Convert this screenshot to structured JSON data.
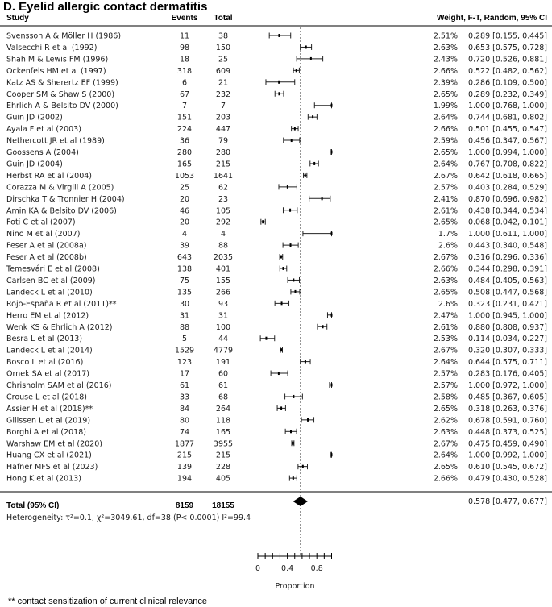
{
  "title": "D. Eyelid allergic contact dermatitis",
  "headers": {
    "study": "Study",
    "events": "Events",
    "total": "Total",
    "weight": "Weight, F-T, Random, 95% CI"
  },
  "chart_data": {
    "type": "forest",
    "xlabel": "Proportion",
    "xlim": [
      0,
      1
    ],
    "ticks": [
      "0",
      "0.4",
      "0.8"
    ],
    "tick_values": [
      0,
      0.1,
      0.2,
      0.3,
      0.4,
      0.5,
      0.6,
      0.7,
      0.8,
      0.9,
      1.0
    ],
    "tick_label_values": [
      0,
      0.4,
      0.8
    ],
    "reference_line": 0.578,
    "studies": [
      {
        "study": "Svensson A & Möller H (1986)",
        "events": "11",
        "total": "38",
        "weight": "2.51%",
        "ci_text": "0.289 [0.155, 0.445]",
        "est": 0.289,
        "lo": 0.155,
        "hi": 0.445
      },
      {
        "study": "Valsecchi R et al (1992)",
        "events": "98",
        "total": "150",
        "weight": "2.63%",
        "ci_text": "0.653 [0.575, 0.728]",
        "est": 0.653,
        "lo": 0.575,
        "hi": 0.728
      },
      {
        "study": "Shah M & Lewis FM (1996)",
        "events": "18",
        "total": "25",
        "weight": "2.43%",
        "ci_text": "0.720 [0.526, 0.881]",
        "est": 0.72,
        "lo": 0.526,
        "hi": 0.881
      },
      {
        "study": "Ockenfels HM et al (1997)",
        "events": "318",
        "total": "609",
        "weight": "2.66%",
        "ci_text": "0.522 [0.482, 0.562]",
        "est": 0.522,
        "lo": 0.482,
        "hi": 0.562
      },
      {
        "study": "Katz AS & Sherertz EF (1999)",
        "events": "6",
        "total": "21",
        "weight": "2.39%",
        "ci_text": "0.286 [0.109, 0.500]",
        "est": 0.286,
        "lo": 0.109,
        "hi": 0.5
      },
      {
        "study": "Cooper SM & Shaw S (2000)",
        "events": "67",
        "total": "232",
        "weight": "2.65%",
        "ci_text": "0.289 [0.232, 0.349]",
        "est": 0.289,
        "lo": 0.232,
        "hi": 0.349
      },
      {
        "study": "Ehrlich A & Belsito DV (2000)",
        "events": "7",
        "total": "7",
        "weight": "1.99%",
        "ci_text": "1.000 [0.768, 1.000]",
        "est": 1.0,
        "lo": 0.768,
        "hi": 1.0
      },
      {
        "study": "Guin JD (2002)",
        "events": "151",
        "total": "203",
        "weight": "2.64%",
        "ci_text": "0.744 [0.681, 0.802]",
        "est": 0.744,
        "lo": 0.681,
        "hi": 0.802
      },
      {
        "study": "Ayala F et al (2003)",
        "events": "224",
        "total": "447",
        "weight": "2.66%",
        "ci_text": "0.501 [0.455, 0.547]",
        "est": 0.501,
        "lo": 0.455,
        "hi": 0.547
      },
      {
        "study": "Nethercott JR et al (1989)",
        "events": "36",
        "total": "79",
        "weight": "2.59%",
        "ci_text": "0.456 [0.347, 0.567]",
        "est": 0.456,
        "lo": 0.347,
        "hi": 0.567
      },
      {
        "study": "Goossens A (2004)",
        "events": "280",
        "total": "280",
        "weight": "2.65%",
        "ci_text": "1.000 [0.994, 1.000]",
        "est": 1.0,
        "lo": 0.994,
        "hi": 1.0
      },
      {
        "study": "Guin JD (2004)",
        "events": "165",
        "total": "215",
        "weight": "2.64%",
        "ci_text": "0.767 [0.708, 0.822]",
        "est": 0.767,
        "lo": 0.708,
        "hi": 0.822
      },
      {
        "study": "Herbst RA et al (2004)",
        "events": "1053",
        "total": "1641",
        "weight": "2.67%",
        "ci_text": "0.642 [0.618, 0.665]",
        "est": 0.642,
        "lo": 0.618,
        "hi": 0.665
      },
      {
        "study": "Corazza M & Virgili A (2005)",
        "events": "25",
        "total": "62",
        "weight": "2.57%",
        "ci_text": "0.403 [0.284, 0.529]",
        "est": 0.403,
        "lo": 0.284,
        "hi": 0.529
      },
      {
        "study": "Dirschka T & Tronnier H (2004)",
        "events": "20",
        "total": "23",
        "weight": "2.41%",
        "ci_text": "0.870 [0.696, 0.982]",
        "est": 0.87,
        "lo": 0.696,
        "hi": 0.982
      },
      {
        "study": "Amin KA & Belsito DV (2006)",
        "events": "46",
        "total": "105",
        "weight": "2.61%",
        "ci_text": "0.438 [0.344, 0.534]",
        "est": 0.438,
        "lo": 0.344,
        "hi": 0.534
      },
      {
        "study": "Foti C et al (2007)",
        "events": "20",
        "total": "292",
        "weight": "2.65%",
        "ci_text": "0.068 [0.042, 0.101]",
        "est": 0.068,
        "lo": 0.042,
        "hi": 0.101
      },
      {
        "study": "Nino M et al (2007)",
        "events": "4",
        "total": "4",
        "weight": "1.7%",
        "ci_text": "1.000 [0.611, 1.000]",
        "est": 1.0,
        "lo": 0.611,
        "hi": 1.0
      },
      {
        "study": "Feser A et al (2008a)",
        "events": "39",
        "total": "88",
        "weight": "2.6%",
        "ci_text": "0.443 [0.340, 0.548]",
        "est": 0.443,
        "lo": 0.34,
        "hi": 0.548
      },
      {
        "study": "Feser A et al (2008b)",
        "events": "643",
        "total": "2035",
        "weight": "2.67%",
        "ci_text": "0.316 [0.296, 0.336]",
        "est": 0.316,
        "lo": 0.296,
        "hi": 0.336
      },
      {
        "study": "Temesvári E et al (2008)",
        "events": "138",
        "total": "401",
        "weight": "2.66%",
        "ci_text": "0.344 [0.298, 0.391]",
        "est": 0.344,
        "lo": 0.298,
        "hi": 0.391
      },
      {
        "study": "Carlsen BC et al (2009)",
        "events": "75",
        "total": "155",
        "weight": "2.63%",
        "ci_text": "0.484 [0.405, 0.563]",
        "est": 0.484,
        "lo": 0.405,
        "hi": 0.563
      },
      {
        "study": "Landeck L et al (2010)",
        "events": "135",
        "total": "266",
        "weight": "2.65%",
        "ci_text": "0.508 [0.447, 0.568]",
        "est": 0.508,
        "lo": 0.447,
        "hi": 0.568
      },
      {
        "study": "Rojo-España R et al (2011)**",
        "events": "30",
        "total": "93",
        "weight": "2.6%",
        "ci_text": "0.323 [0.231, 0.421]",
        "est": 0.323,
        "lo": 0.231,
        "hi": 0.421
      },
      {
        "study": "Herro EM et al (2012)",
        "events": "31",
        "total": "31",
        "weight": "2.47%",
        "ci_text": "1.000 [0.945, 1.000]",
        "est": 1.0,
        "lo": 0.945,
        "hi": 1.0
      },
      {
        "study": "Wenk KS & Ehrlich A (2012)",
        "events": "88",
        "total": "100",
        "weight": "2.61%",
        "ci_text": "0.880 [0.808, 0.937]",
        "est": 0.88,
        "lo": 0.808,
        "hi": 0.937
      },
      {
        "study": "Besra L et al (2013)",
        "events": "5",
        "total": "44",
        "weight": "2.53%",
        "ci_text": "0.114 [0.034, 0.227]",
        "est": 0.114,
        "lo": 0.034,
        "hi": 0.227
      },
      {
        "study": "Landeck L et al (2014)",
        "events": "1529",
        "total": "4779",
        "weight": "2.67%",
        "ci_text": "0.320 [0.307, 0.333]",
        "est": 0.32,
        "lo": 0.307,
        "hi": 0.333
      },
      {
        "study": "Bosco L et al (2016)",
        "events": "123",
        "total": "191",
        "weight": "2.64%",
        "ci_text": "0.644 [0.575, 0.711]",
        "est": 0.644,
        "lo": 0.575,
        "hi": 0.711
      },
      {
        "study": "Ornek SA et al (2017)",
        "events": "17",
        "total": "60",
        "weight": "2.57%",
        "ci_text": "0.283 [0.176, 0.405]",
        "est": 0.283,
        "lo": 0.176,
        "hi": 0.405
      },
      {
        "study": "Chrisholm SAM et al (2016)",
        "events": "61",
        "total": "61",
        "weight": "2.57%",
        "ci_text": "1.000 [0.972, 1.000]",
        "est": 1.0,
        "lo": 0.972,
        "hi": 1.0
      },
      {
        "study": "Crouse L et al (2018)",
        "events": "33",
        "total": "68",
        "weight": "2.58%",
        "ci_text": "0.485 [0.367, 0.605]",
        "est": 0.485,
        "lo": 0.367,
        "hi": 0.605
      },
      {
        "study": "Assier H et al (2018)**",
        "events": "84",
        "total": "264",
        "weight": "2.65%",
        "ci_text": "0.318 [0.263, 0.376]",
        "est": 0.318,
        "lo": 0.263,
        "hi": 0.376
      },
      {
        "study": "Gilissen L et al (2019)",
        "events": "80",
        "total": "118",
        "weight": "2.62%",
        "ci_text": "0.678 [0.591, 0.760]",
        "est": 0.678,
        "lo": 0.591,
        "hi": 0.76
      },
      {
        "study": "Borghi A et al (2018)",
        "events": "74",
        "total": "165",
        "weight": "2.63%",
        "ci_text": "0.448 [0.373, 0.525]",
        "est": 0.448,
        "lo": 0.373,
        "hi": 0.525
      },
      {
        "study": "Warshaw EM et al (2020)",
        "events": "1877",
        "total": "3955",
        "weight": "2.67%",
        "ci_text": "0.475 [0.459, 0.490]",
        "est": 0.475,
        "lo": 0.459,
        "hi": 0.49
      },
      {
        "study": "Huang CX et al (2021)",
        "events": "215",
        "total": "215",
        "weight": "2.64%",
        "ci_text": "1.000 [0.992, 1.000]",
        "est": 1.0,
        "lo": 0.992,
        "hi": 1.0
      },
      {
        "study": "Hafner MFS et al (2023)",
        "events": "139",
        "total": "228",
        "weight": "2.65%",
        "ci_text": "0.610 [0.545, 0.672]",
        "est": 0.61,
        "lo": 0.545,
        "hi": 0.672
      },
      {
        "study": "Hong K et al (2013)",
        "events": "194",
        "total": "405",
        "weight": "2.66%",
        "ci_text": "0.479 [0.430, 0.528]",
        "est": 0.479,
        "lo": 0.43,
        "hi": 0.528
      }
    ],
    "total": {
      "label": "Total (95% CI)",
      "events": "8159",
      "total": "18155",
      "ci_text": "0.578 [0.477, 0.677]",
      "est": 0.578,
      "lo": 0.477,
      "hi": 0.677
    },
    "heterogeneity": "Heterogeneity: τ²=0.1, χ²=3049.61, df=38 (P< 0.0001) I²=99.4"
  },
  "footnote": "** contact sensitization of current clinical relevance"
}
